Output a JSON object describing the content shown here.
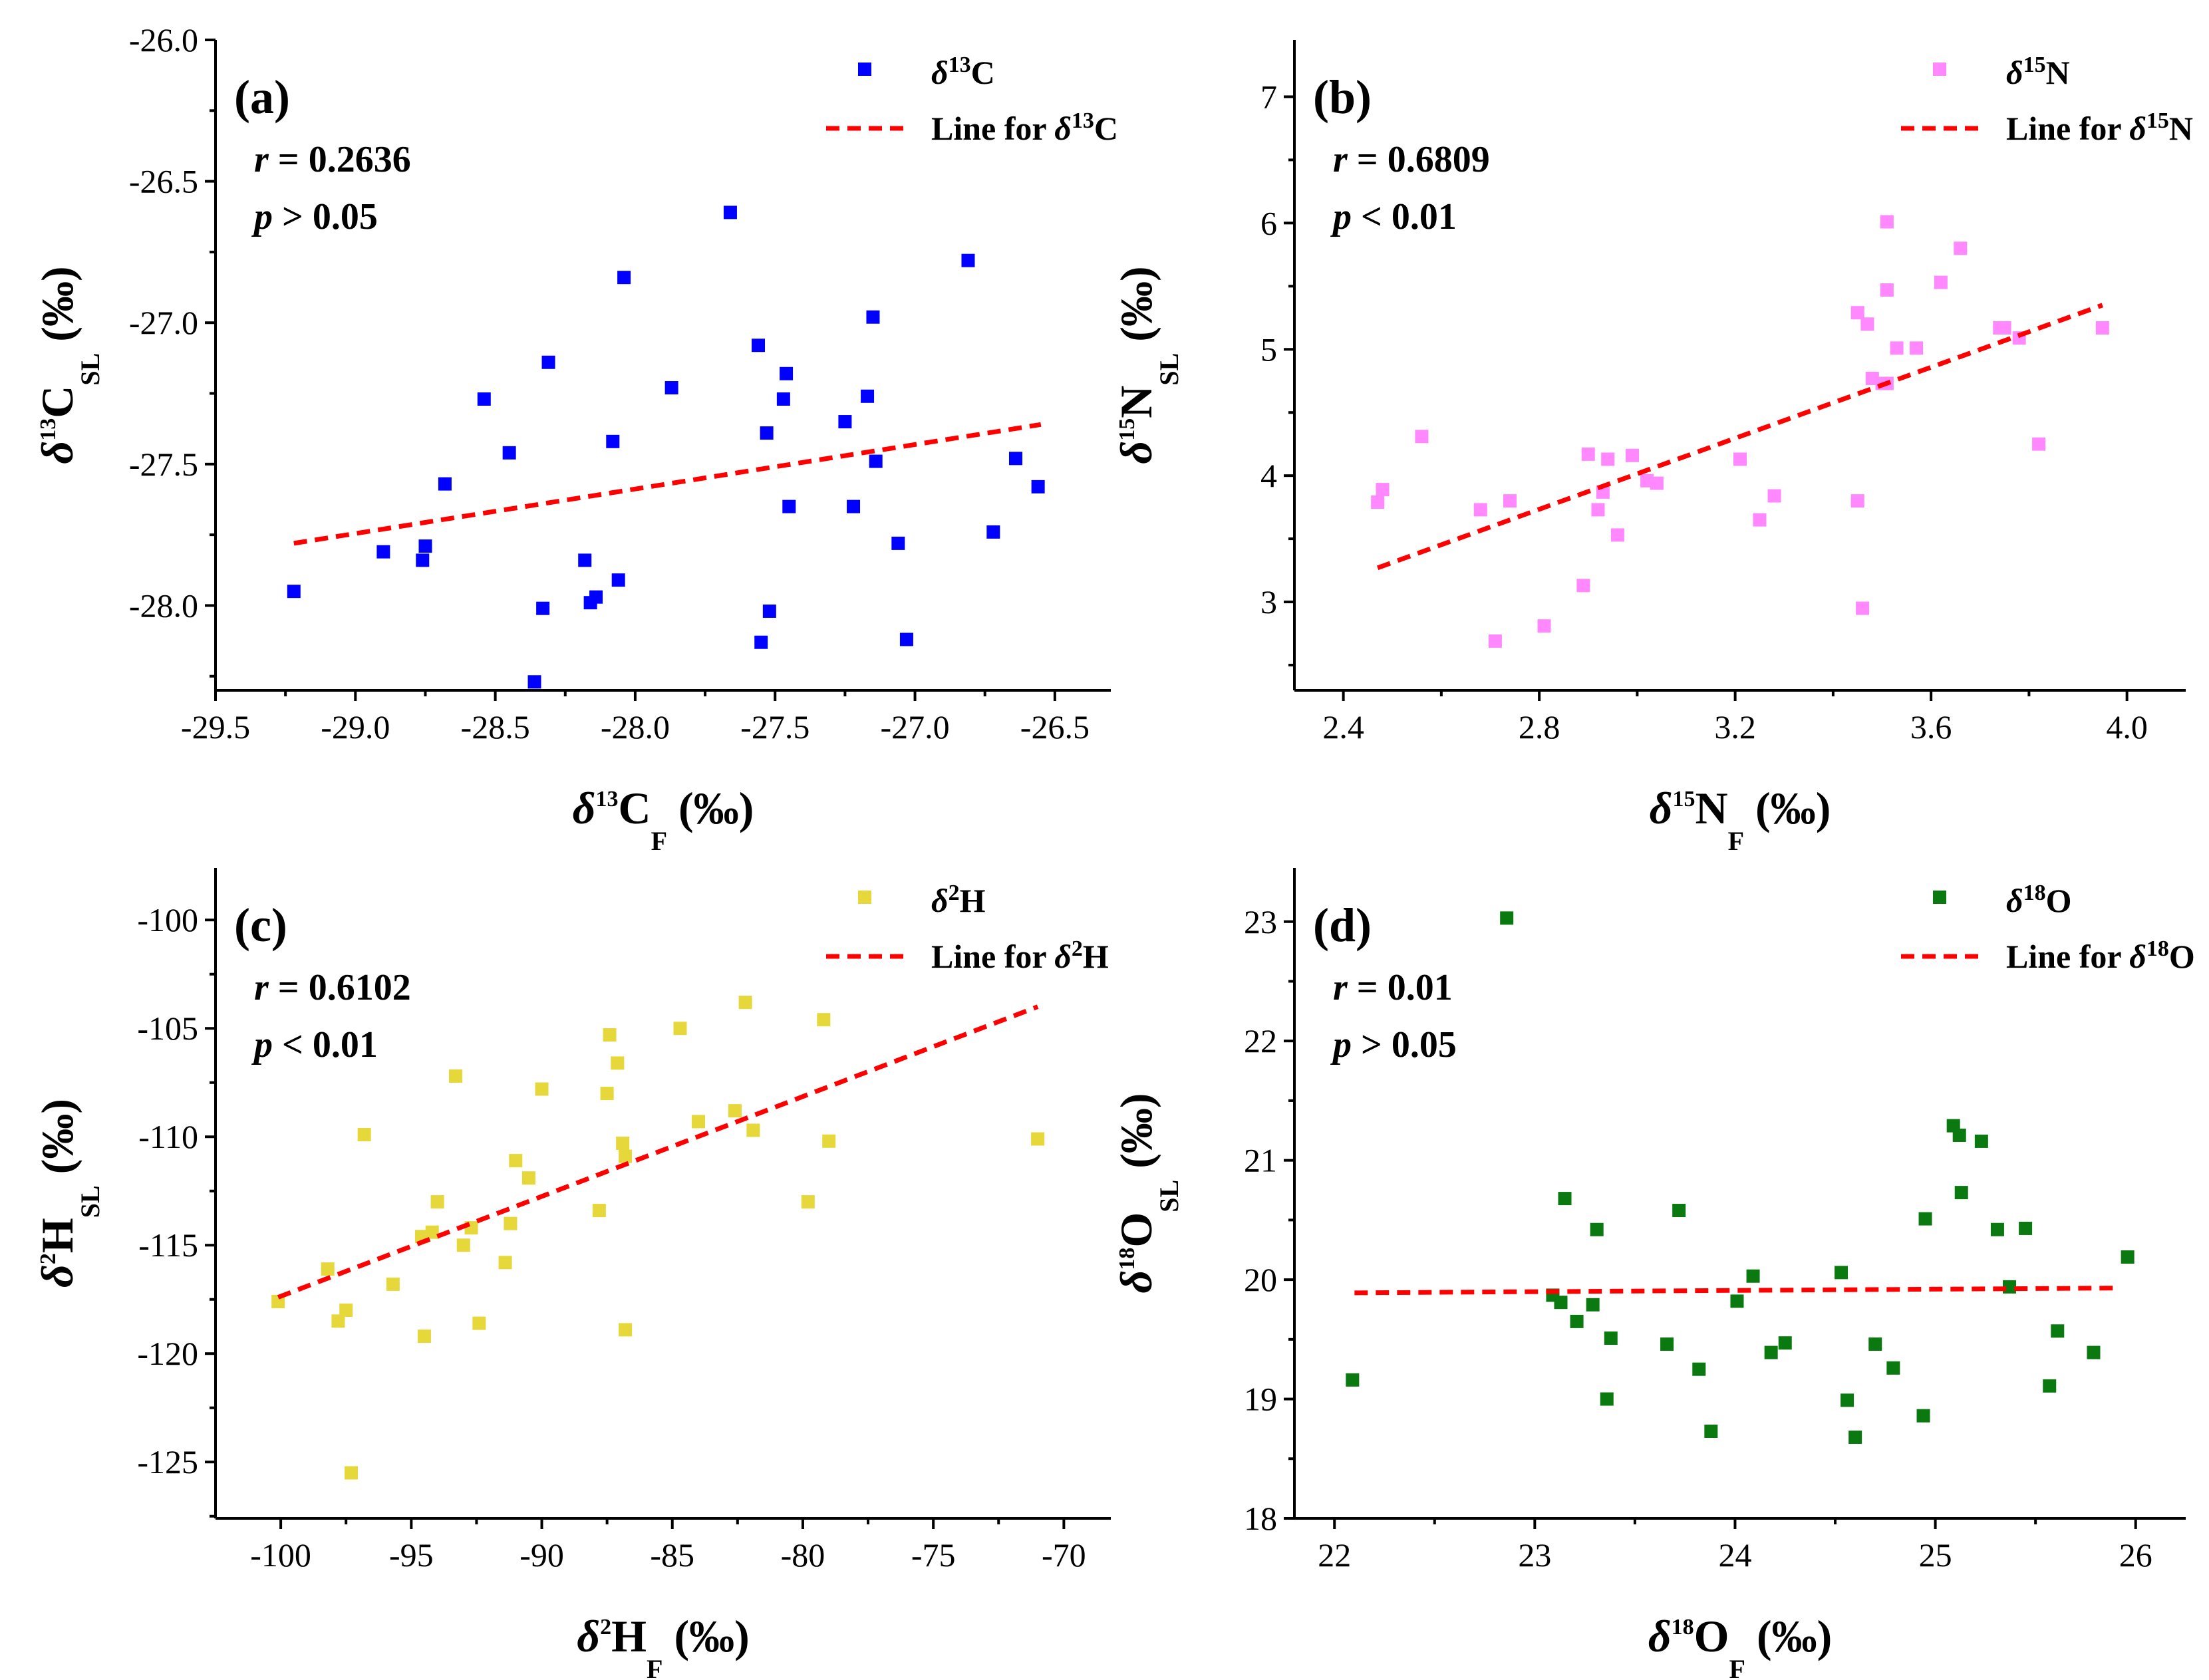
{
  "chart_data": [
    {
      "type": "scatter",
      "panel": "(a)",
      "r_label": "r",
      "r_value": "= 0.2636",
      "p_label": "p",
      "p_value": "> 0.05",
      "delta": "δ",
      "iso_sup": "13",
      "iso_el": "C",
      "legend_series": "δ13C",
      "legend_line_prefix": "Line for ",
      "legend_line": "Line for δ13C",
      "xlabel": "δ13CF (‰)",
      "ylabel": "δ13CSL (‰)",
      "x_sub": "F",
      "y_sub": "SL",
      "unit": "(‰)",
      "color": "#0000ff",
      "line_color": "#ff0000",
      "xlim": [
        -29.5,
        -26.3
      ],
      "ylim": [
        -28.3,
        -26.0
      ],
      "xticks": [
        -29.5,
        -29.0,
        -28.5,
        -28.0,
        -27.5,
        -27.0,
        -26.5
      ],
      "xtick_labels": [
        "-29.5",
        "-29.0",
        "-28.5",
        "-28.0",
        "-27.5",
        "-27.0",
        "-26.5"
      ],
      "yticks": [
        -28.0,
        -27.5,
        -27.0,
        -26.5,
        -26.0
      ],
      "ytick_labels": [
        "-28.0",
        "-27.5",
        "-27.0",
        "-26.5",
        "-26.0"
      ],
      "fit": {
        "x": [
          -29.22,
          -26.55
        ],
        "y": [
          -27.78,
          -27.36
        ]
      },
      "x": [
        -29.22,
        -28.9,
        -28.76,
        -28.75,
        -28.68,
        -28.54,
        -28.45,
        -28.36,
        -28.33,
        -28.31,
        -28.18,
        -28.16,
        -28.14,
        -28.08,
        -28.06,
        -28.04,
        -27.87,
        -27.66,
        -27.56,
        -27.55,
        -27.53,
        -27.52,
        -27.47,
        -27.46,
        -27.45,
        -27.25,
        -27.22,
        -27.17,
        -27.15,
        -27.14,
        -27.06,
        -27.03,
        -26.81,
        -26.72,
        -26.64,
        -26.56
      ],
      "y": [
        -27.95,
        -27.81,
        -27.84,
        -27.79,
        -27.57,
        -27.27,
        -27.46,
        -28.27,
        -28.01,
        -27.14,
        -27.84,
        -27.99,
        -27.97,
        -27.42,
        -27.91,
        -26.84,
        -27.23,
        -26.61,
        -27.08,
        -28.13,
        -27.39,
        -28.02,
        -27.27,
        -27.18,
        -27.65,
        -27.35,
        -27.65,
        -27.26,
        -26.98,
        -27.49,
        -27.78,
        -28.12,
        -26.78,
        -27.74,
        -27.48,
        -27.58
      ]
    },
    {
      "type": "scatter",
      "panel": "(b)",
      "r_label": "r",
      "r_value": "= 0.6809",
      "p_label": "p",
      "p_value": "< 0.01",
      "delta": "δ",
      "iso_sup": "15",
      "iso_el": "N",
      "legend_series": "δ15N",
      "legend_line_prefix": "Line for ",
      "legend_line": "Line for δ15N",
      "xlabel": "δ15NF (‰)",
      "ylabel": "δ15NSL (‰)",
      "x_sub": "F",
      "y_sub": "SL",
      "unit": "(‰)",
      "color": "#ff88ff",
      "line_color": "#ff0000",
      "xlim": [
        2.3,
        4.12
      ],
      "ylim": [
        2.3,
        7.45
      ],
      "xticks": [
        2.4,
        2.8,
        3.2,
        3.6,
        4.0
      ],
      "xtick_labels": [
        "2.4",
        "2.8",
        "3.2",
        "3.6",
        "4.0"
      ],
      "yticks": [
        3,
        4,
        5,
        6,
        7
      ],
      "ytick_labels": [
        "3",
        "4",
        "5",
        "6",
        "7"
      ],
      "fit": {
        "x": [
          2.47,
          3.95
        ],
        "y": [
          3.27,
          5.35
        ]
      },
      "x": [
        2.47,
        2.48,
        2.56,
        2.68,
        2.71,
        2.74,
        2.81,
        2.89,
        2.9,
        2.92,
        2.93,
        2.94,
        2.96,
        2.99,
        3.02,
        3.04,
        3.21,
        3.25,
        3.28,
        3.45,
        3.45,
        3.46,
        3.47,
        3.48,
        3.5,
        3.51,
        3.51,
        3.51,
        3.53,
        3.57,
        3.62,
        3.66,
        3.74,
        3.75,
        3.78,
        3.82,
        3.95
      ],
      "y": [
        3.79,
        3.89,
        4.31,
        3.73,
        2.69,
        3.8,
        2.81,
        3.13,
        4.17,
        3.73,
        3.87,
        4.13,
        3.53,
        4.16,
        3.96,
        3.94,
        4.13,
        3.65,
        3.84,
        5.29,
        3.8,
        2.95,
        5.2,
        4.77,
        4.73,
        5.47,
        6.01,
        4.73,
        5.01,
        5.01,
        5.53,
        5.8,
        5.17,
        5.17,
        5.09,
        4.25,
        5.17
      ]
    },
    {
      "type": "scatter",
      "panel": "(c)",
      "r_label": "r",
      "r_value": "= 0.6102",
      "p_label": "p",
      "p_value": "< 0.01",
      "delta": "δ",
      "iso_sup": "2",
      "iso_el": "H",
      "legend_series": "δ2H",
      "legend_line_prefix": "Line for ",
      "legend_line": "Line for δ2H",
      "xlabel": "δ2HF (‰)",
      "ylabel": "δ2HSL (‰)",
      "x_sub": "F",
      "y_sub": "SL",
      "unit": "(‰)",
      "color": "#e6d83a",
      "line_color": "#ff0000",
      "xlim": [
        -102.5,
        -68.2
      ],
      "ylim": [
        -127.6,
        -97.6
      ],
      "xticks": [
        -100,
        -95,
        -90,
        -85,
        -80,
        -75,
        -70
      ],
      "xtick_labels": [
        "-100",
        "-95",
        "-90",
        "-85",
        "-80",
        "-75",
        "-70"
      ],
      "yticks": [
        -125,
        -120,
        -115,
        -110,
        -105,
        -100
      ],
      "ytick_labels": [
        "-125",
        "-120",
        "-115",
        "-110",
        "-105",
        "-100"
      ],
      "fit": {
        "x": [
          -100.1,
          -71.0
        ],
        "y": [
          -117.4,
          -104.0
        ]
      },
      "x": [
        -100.1,
        -98.2,
        -97.8,
        -97.5,
        -97.3,
        -96.8,
        -95.7,
        -94.6,
        -94.5,
        -94.2,
        -94.0,
        -93.3,
        -93.0,
        -92.7,
        -92.4,
        -91.4,
        -91.2,
        -91.0,
        -90.5,
        -90.0,
        -87.8,
        -87.5,
        -87.4,
        -87.1,
        -86.9,
        -86.8,
        -86.8,
        -84.7,
        -84.0,
        -82.6,
        -82.2,
        -81.9,
        -79.8,
        -79.2,
        -79.0,
        -71.0
      ],
      "y": [
        -117.6,
        -116.1,
        -118.5,
        -118.0,
        -125.5,
        -109.9,
        -116.8,
        -114.6,
        -119.2,
        -114.4,
        -113.0,
        -107.2,
        -115.0,
        -114.2,
        -118.6,
        -115.8,
        -114.0,
        -111.1,
        -111.9,
        -107.8,
        -113.4,
        -108.0,
        -105.3,
        -106.6,
        -110.3,
        -110.9,
        -118.9,
        -105.0,
        -109.3,
        -108.8,
        -103.8,
        -109.7,
        -113.0,
        -104.6,
        -110.2,
        -110.1
      ]
    },
    {
      "type": "scatter",
      "panel": "(d)",
      "r_label": "r",
      "r_value": "= 0.01",
      "p_label": "p",
      "p_value": "> 0.05",
      "delta": "δ",
      "iso_sup": "18",
      "iso_el": "O",
      "legend_series": "δ18O",
      "legend_line_prefix": "Line for ",
      "legend_line": "Line for δ18O",
      "xlabel": "δ18OF (‰)",
      "ylabel": "δ18OSL (‰)",
      "x_sub": "F",
      "y_sub": "SL",
      "unit": "(‰)",
      "color": "#0a7a10",
      "line_color": "#ff0000",
      "xlim": [
        21.8,
        26.25
      ],
      "ylim": [
        18.0,
        23.45
      ],
      "xticks": [
        22,
        23,
        24,
        25,
        26
      ],
      "xtick_labels": [
        "22",
        "23",
        "24",
        "25",
        "26"
      ],
      "yticks": [
        18,
        19,
        20,
        21,
        22,
        23
      ],
      "ytick_labels": [
        "18",
        "19",
        "20",
        "21",
        "22",
        "23"
      ],
      "fit": {
        "x": [
          22.1,
          25.9
        ],
        "y": [
          19.89,
          19.93
        ]
      },
      "x": [
        22.09,
        22.86,
        23.09,
        23.13,
        23.15,
        23.21,
        23.29,
        23.31,
        23.36,
        23.38,
        23.66,
        23.72,
        23.82,
        23.88,
        24.01,
        24.09,
        24.18,
        24.25,
        24.53,
        24.56,
        24.6,
        24.7,
        24.79,
        24.94,
        24.95,
        25.09,
        25.12,
        25.13,
        25.23,
        25.31,
        25.37,
        25.45,
        25.57,
        25.61,
        25.79,
        25.96
      ],
      "y": [
        19.16,
        23.03,
        19.87,
        19.81,
        20.68,
        19.65,
        19.79,
        20.42,
        19.0,
        19.51,
        19.46,
        20.58,
        19.25,
        18.73,
        19.82,
        20.03,
        19.39,
        19.47,
        20.06,
        18.99,
        18.68,
        19.46,
        19.26,
        18.86,
        20.51,
        21.29,
        21.21,
        20.73,
        21.16,
        20.42,
        19.94,
        20.43,
        19.11,
        19.57,
        19.39,
        20.19
      ]
    }
  ]
}
